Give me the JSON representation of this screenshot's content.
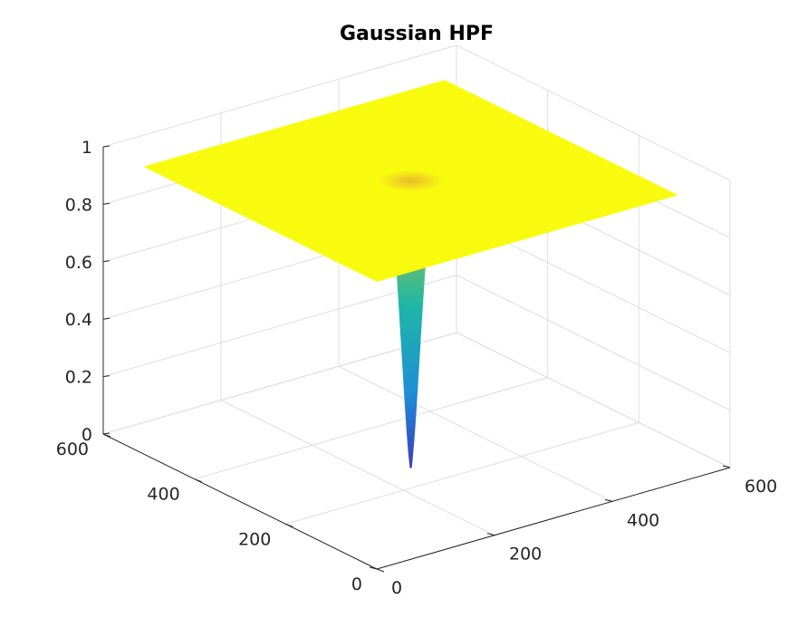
{
  "chart_data": {
    "type": "surface",
    "title": "Gaussian HPF",
    "xlabel": "",
    "ylabel": "",
    "zlabel": "",
    "x_range": [
      0,
      600
    ],
    "y_range": [
      0,
      600
    ],
    "z_range": [
      0,
      1
    ],
    "x_ticks": [
      0,
      200,
      400,
      600
    ],
    "y_ticks": [
      0,
      200,
      400,
      600
    ],
    "z_ticks": [
      0,
      0.2,
      0.4,
      0.6,
      0.8,
      1
    ],
    "x_tick_labels": [
      "0",
      "200",
      "400",
      "600"
    ],
    "y_tick_labels": [
      "0",
      "200",
      "400",
      "600"
    ],
    "z_tick_labels": [
      "0",
      "0.2",
      "0.4",
      "0.6",
      "0.8",
      "1"
    ],
    "surface_extent": [
      0,
      512
    ],
    "surface_center": [
      256,
      256
    ],
    "surface_min_value": 0,
    "plateau_value": 1,
    "colormap": "parula",
    "colors": {
      "plateau": "#f9fb0e",
      "ring": "#e9ba2b",
      "cone_top": "#a8c23c",
      "cone_mid": "#1fb7a6",
      "cone_low": "#1e8ed6",
      "cone_bottom": "#3b3bbd",
      "grid": "#dedede",
      "axis": "#262626"
    },
    "grid": true
  }
}
